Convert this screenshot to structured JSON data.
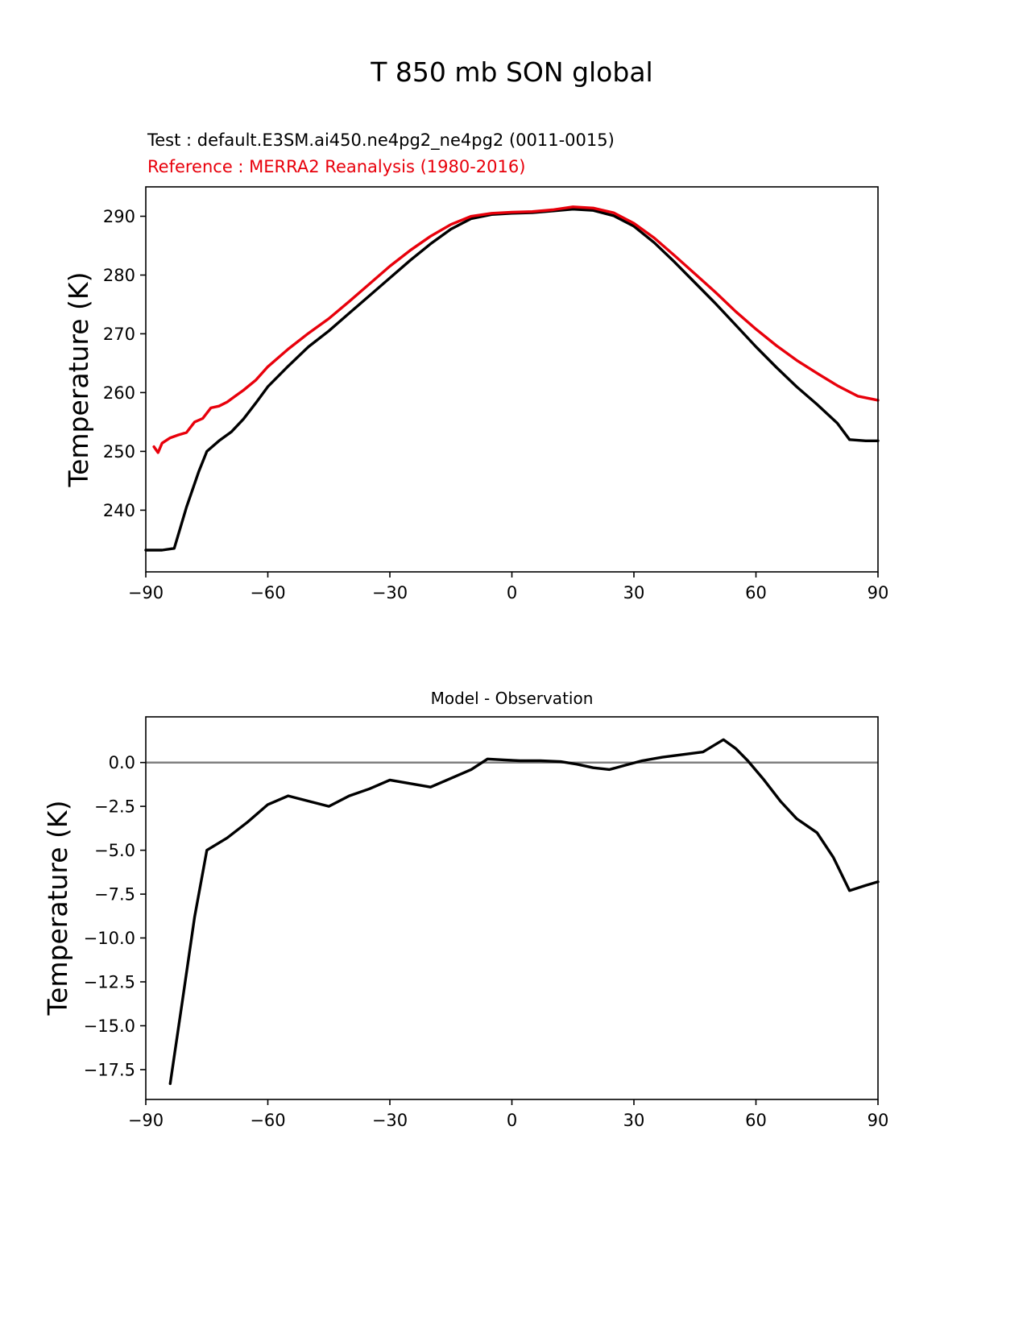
{
  "figure": {
    "title": "T 850 mb SON global",
    "subtitle_test": "Test : default.E3SM.ai450.ne4pg2_ne4pg2 (0011-0015)",
    "subtitle_reference": "Reference : MERRA2 Reanalysis (1980-2016)",
    "colors": {
      "test_line": "#000000",
      "reference_line": "#e8000b",
      "zero_line": "#808080",
      "background": "#ffffff"
    }
  },
  "chart_data": [
    {
      "type": "line",
      "title": "T 850 mb SON global",
      "xlabel": "",
      "ylabel": "Temperature (K)",
      "xlim": [
        -90,
        90
      ],
      "ylim": [
        229.5,
        295
      ],
      "grid": false,
      "legend_position": "none (series identified by colored subtitle lines above plot)",
      "xtick_values": [
        -90,
        -60,
        -30,
        0,
        30,
        60,
        90
      ],
      "xtick_labels": [
        "−90",
        "−60",
        "−30",
        "0",
        "30",
        "60",
        "90"
      ],
      "ytick_values": [
        240,
        250,
        260,
        270,
        280,
        290
      ],
      "ytick_labels": [
        "240",
        "250",
        "260",
        "270",
        "280",
        "290"
      ],
      "series": [
        {
          "name": "Test : default.E3SM.ai450.ne4pg2_ne4pg2 (0011-0015)",
          "color": "#000000",
          "x": [
            -90,
            -86,
            -83,
            -80,
            -77,
            -75,
            -72,
            -69,
            -66,
            -63,
            -60,
            -55,
            -50,
            -45,
            -40,
            -35,
            -30,
            -25,
            -20,
            -15,
            -10,
            -5,
            0,
            5,
            10,
            15,
            20,
            25,
            30,
            35,
            40,
            45,
            50,
            55,
            60,
            65,
            70,
            75,
            80,
            83,
            87,
            90
          ],
          "y": [
            233.2,
            233.2,
            233.5,
            240.5,
            246.5,
            250.0,
            251.8,
            253.3,
            255.5,
            258.2,
            261.0,
            264.5,
            267.8,
            270.5,
            273.5,
            276.5,
            279.5,
            282.5,
            285.3,
            287.8,
            289.6,
            290.3,
            290.5,
            290.6,
            290.9,
            291.2,
            291.0,
            290.1,
            288.3,
            285.5,
            282.2,
            278.7,
            275.2,
            271.5,
            267.8,
            264.3,
            261.0,
            258.0,
            254.8,
            252.0,
            251.8,
            251.8
          ]
        },
        {
          "name": "Reference : MERRA2 Reanalysis (1980-2016)",
          "color": "#e8000b",
          "x": [
            -88,
            -87,
            -86,
            -84,
            -82,
            -80,
            -78,
            -76,
            -74,
            -72,
            -70,
            -68,
            -66,
            -63,
            -60,
            -55,
            -50,
            -45,
            -40,
            -35,
            -30,
            -25,
            -20,
            -15,
            -10,
            -5,
            0,
            5,
            10,
            15,
            20,
            25,
            30,
            35,
            40,
            45,
            50,
            55,
            60,
            65,
            70,
            75,
            80,
            85,
            90
          ],
          "y": [
            250.8,
            249.8,
            251.4,
            252.3,
            252.8,
            253.2,
            255.0,
            255.6,
            257.4,
            257.7,
            258.4,
            259.4,
            260.4,
            262.1,
            264.4,
            267.4,
            270.1,
            272.6,
            275.5,
            278.5,
            281.5,
            284.2,
            286.6,
            288.6,
            290.0,
            290.5,
            290.7,
            290.8,
            291.1,
            291.6,
            291.4,
            290.6,
            288.8,
            286.3,
            283.3,
            280.2,
            277.1,
            273.8,
            270.8,
            268.0,
            265.5,
            263.3,
            261.2,
            259.4,
            258.7
          ]
        }
      ]
    },
    {
      "type": "line",
      "title": "Model - Observation",
      "xlabel": "",
      "ylabel": "Temperature (K)",
      "xlim": [
        -90,
        90
      ],
      "ylim": [
        -19.2,
        2.6
      ],
      "grid": false,
      "zero_line": 0,
      "xtick_values": [
        -90,
        -60,
        -30,
        0,
        30,
        60,
        90
      ],
      "xtick_labels": [
        "−90",
        "−60",
        "−30",
        "0",
        "30",
        "60",
        "90"
      ],
      "ytick_values": [
        0,
        -2.5,
        -5,
        -7.5,
        -10,
        -12.5,
        -15,
        -17.5
      ],
      "ytick_labels": [
        "0.0",
        "−2.5",
        "−5.0",
        "−7.5",
        "−10.0",
        "−12.5",
        "−15.0",
        "−17.5"
      ],
      "series": [
        {
          "name": "Model - Observation",
          "color": "#000000",
          "x": [
            -84,
            -81,
            -78,
            -75,
            -70,
            -65,
            -60,
            -55,
            -50,
            -45,
            -40,
            -35,
            -30,
            -25,
            -20,
            -15,
            -10,
            -6,
            -2,
            2,
            7,
            12,
            16,
            20,
            24,
            28,
            32,
            37,
            42,
            47,
            52,
            55,
            58,
            62,
            66,
            70,
            75,
            79,
            83,
            87,
            90
          ],
          "y": [
            -18.3,
            -13.6,
            -8.8,
            -5.0,
            -4.3,
            -3.4,
            -2.4,
            -1.9,
            -2.2,
            -2.5,
            -1.9,
            -1.5,
            -1.0,
            -1.2,
            -1.4,
            -0.9,
            -0.4,
            0.2,
            0.15,
            0.1,
            0.1,
            0.05,
            -0.1,
            -0.3,
            -0.4,
            -0.15,
            0.1,
            0.3,
            0.45,
            0.6,
            1.3,
            0.8,
            0.1,
            -1.0,
            -2.2,
            -3.2,
            -4.0,
            -5.4,
            -7.3,
            -7.0,
            -6.8
          ]
        }
      ]
    }
  ]
}
